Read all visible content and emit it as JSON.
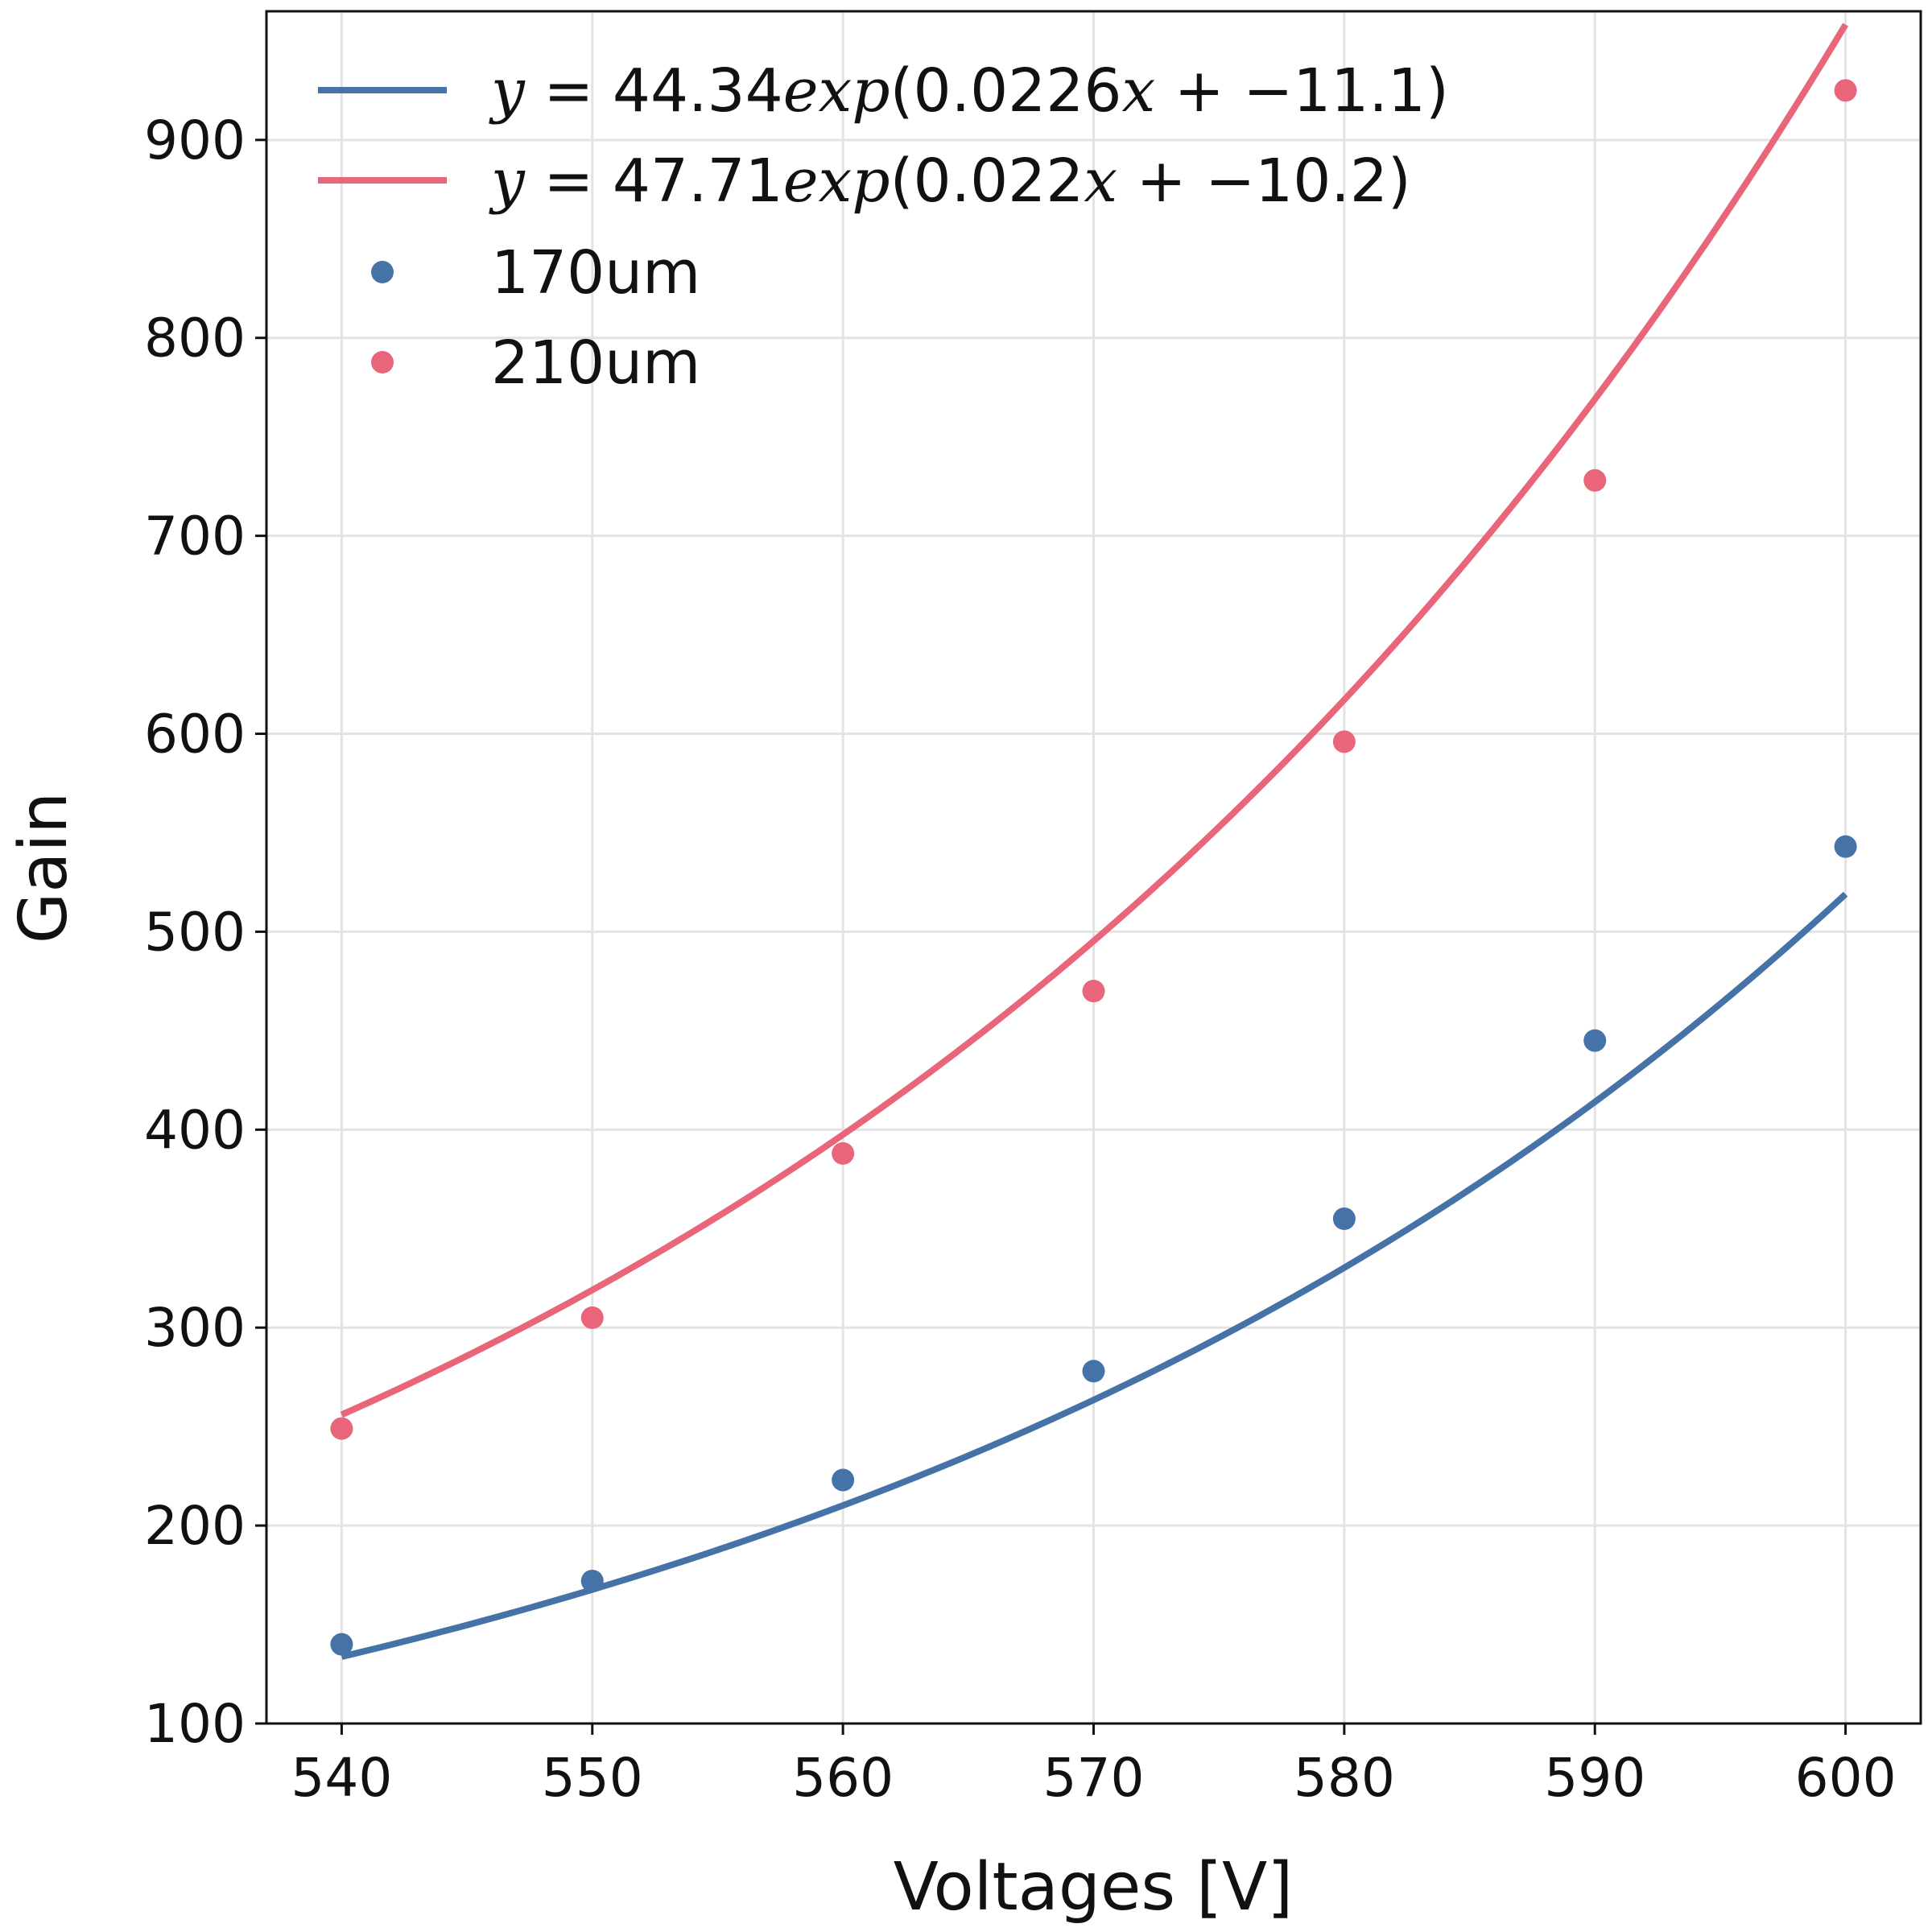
{
  "chart_data": {
    "type": "scatter",
    "xlabel": "Voltages [V]",
    "ylabel": "Gain",
    "xlim": [
      537,
      603
    ],
    "ylim": [
      100,
      965
    ],
    "x_ticks": [
      540,
      550,
      560,
      570,
      580,
      590,
      600
    ],
    "y_ticks": [
      100,
      200,
      300,
      400,
      500,
      600,
      700,
      800,
      900
    ],
    "grid": true,
    "legend_position": "top-left",
    "fits": [
      {
        "name": "y = 44.34exp(0.0226x + −11.1)",
        "legend_math": "y",
        "legend_rest": " = 44.34",
        "legend_math2": "exp",
        "legend_rest2": "(0.0226",
        "legend_math3": "x",
        "legend_rest3": " + −11.1)",
        "a": 44.34,
        "b": 0.0226,
        "c": -11.1,
        "x_range": [
          540,
          600
        ],
        "color": "#4572a7"
      },
      {
        "name": "y = 47.71exp(0.022x + −10.2)",
        "legend_math": "y",
        "legend_rest": " = 47.71",
        "legend_math2": "exp",
        "legend_rest2": "(0.022",
        "legend_math3": "x",
        "legend_rest3": " + −10.2)",
        "a": 47.71,
        "b": 0.022,
        "c": -10.2,
        "x_range": [
          540,
          600
        ],
        "color": "#e8657a"
      }
    ],
    "series": [
      {
        "name": "170um",
        "color": "#4572a7",
        "x": [
          540,
          550,
          560,
          570,
          580,
          590,
          600
        ],
        "y": [
          140,
          172,
          223,
          278,
          355,
          445,
          543
        ]
      },
      {
        "name": "210um",
        "color": "#e8657a",
        "x": [
          540,
          550,
          560,
          570,
          580,
          590,
          600
        ],
        "y": [
          249,
          305,
          388,
          470,
          596,
          728,
          925
        ]
      }
    ]
  }
}
